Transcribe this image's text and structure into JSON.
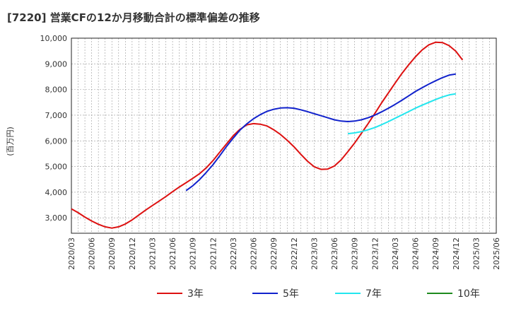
{
  "chart_data": {
    "type": "line",
    "title": "[7220]  営業CFの12か月移動合計の標準偏差の推移",
    "ylabel": "(百万円)",
    "xlabel": "",
    "ylim": [
      2400,
      10000
    ],
    "yticks": [
      3000,
      4000,
      5000,
      6000,
      7000,
      8000,
      9000,
      10000
    ],
    "ytick_labels": [
      "3,000",
      "4,000",
      "5,000",
      "6,000",
      "7,000",
      "8,000",
      "9,000",
      "10,000"
    ],
    "xlim": [
      "2020-03",
      "2025-06"
    ],
    "x_tick_labels": [
      "2020/03",
      "2020/06",
      "2020/09",
      "2020/12",
      "2021/03",
      "2021/06",
      "2021/09",
      "2021/12",
      "2022/03",
      "2022/06",
      "2022/09",
      "2022/12",
      "2023/03",
      "2023/06",
      "2023/09",
      "2023/12",
      "2024/03",
      "2024/06",
      "2024/09",
      "2024/12",
      "2025/03",
      "2025/06"
    ],
    "grid": true,
    "legend_position": "bottom",
    "series": [
      {
        "name": "3年",
        "color": "#dd1111",
        "points": [
          [
            "2020-03",
            3350
          ],
          [
            "2020-04",
            3200
          ],
          [
            "2020-05",
            3030
          ],
          [
            "2020-06",
            2880
          ],
          [
            "2020-07",
            2750
          ],
          [
            "2020-08",
            2650
          ],
          [
            "2020-09",
            2600
          ],
          [
            "2020-10",
            2650
          ],
          [
            "2020-11",
            2760
          ],
          [
            "2020-12",
            2920
          ],
          [
            "2021-01",
            3110
          ],
          [
            "2021-02",
            3300
          ],
          [
            "2021-03",
            3480
          ],
          [
            "2021-04",
            3650
          ],
          [
            "2021-05",
            3830
          ],
          [
            "2021-06",
            4020
          ],
          [
            "2021-07",
            4200
          ],
          [
            "2021-08",
            4370
          ],
          [
            "2021-09",
            4540
          ],
          [
            "2021-10",
            4720
          ],
          [
            "2021-11",
            4950
          ],
          [
            "2021-12",
            5230
          ],
          [
            "2022-01",
            5560
          ],
          [
            "2022-02",
            5880
          ],
          [
            "2022-03",
            6200
          ],
          [
            "2022-04",
            6450
          ],
          [
            "2022-05",
            6620
          ],
          [
            "2022-06",
            6670
          ],
          [
            "2022-07",
            6650
          ],
          [
            "2022-08",
            6580
          ],
          [
            "2022-09",
            6430
          ],
          [
            "2022-10",
            6250
          ],
          [
            "2022-11",
            6020
          ],
          [
            "2022-12",
            5770
          ],
          [
            "2023-01",
            5480
          ],
          [
            "2023-02",
            5210
          ],
          [
            "2023-03",
            4990
          ],
          [
            "2023-04",
            4890
          ],
          [
            "2023-05",
            4900
          ],
          [
            "2023-06",
            5020
          ],
          [
            "2023-07",
            5260
          ],
          [
            "2023-08",
            5580
          ],
          [
            "2023-09",
            5920
          ],
          [
            "2023-10",
            6290
          ],
          [
            "2023-11",
            6670
          ],
          [
            "2023-12",
            7070
          ],
          [
            "2024-01",
            7480
          ],
          [
            "2024-02",
            7870
          ],
          [
            "2024-03",
            8250
          ],
          [
            "2024-04",
            8620
          ],
          [
            "2024-05",
            8960
          ],
          [
            "2024-06",
            9270
          ],
          [
            "2024-07",
            9540
          ],
          [
            "2024-08",
            9740
          ],
          [
            "2024-09",
            9840
          ],
          [
            "2024-10",
            9830
          ],
          [
            "2024-11",
            9710
          ],
          [
            "2024-12",
            9490
          ],
          [
            "2025-01",
            9150
          ]
        ]
      },
      {
        "name": "5年",
        "color": "#1122cc",
        "points": [
          [
            "2021-08",
            4060
          ],
          [
            "2021-09",
            4250
          ],
          [
            "2021-10",
            4490
          ],
          [
            "2021-11",
            4770
          ],
          [
            "2021-12",
            5070
          ],
          [
            "2022-01",
            5420
          ],
          [
            "2022-02",
            5780
          ],
          [
            "2022-03",
            6110
          ],
          [
            "2022-04",
            6420
          ],
          [
            "2022-05",
            6660
          ],
          [
            "2022-06",
            6860
          ],
          [
            "2022-07",
            7020
          ],
          [
            "2022-08",
            7150
          ],
          [
            "2022-09",
            7230
          ],
          [
            "2022-10",
            7280
          ],
          [
            "2022-11",
            7290
          ],
          [
            "2022-12",
            7270
          ],
          [
            "2023-01",
            7210
          ],
          [
            "2023-02",
            7140
          ],
          [
            "2023-03",
            7060
          ],
          [
            "2023-04",
            6980
          ],
          [
            "2023-05",
            6900
          ],
          [
            "2023-06",
            6820
          ],
          [
            "2023-07",
            6770
          ],
          [
            "2023-08",
            6750
          ],
          [
            "2023-09",
            6770
          ],
          [
            "2023-10",
            6820
          ],
          [
            "2023-11",
            6900
          ],
          [
            "2023-12",
            7000
          ],
          [
            "2024-01",
            7130
          ],
          [
            "2024-02",
            7270
          ],
          [
            "2024-03",
            7420
          ],
          [
            "2024-04",
            7580
          ],
          [
            "2024-05",
            7750
          ],
          [
            "2024-06",
            7920
          ],
          [
            "2024-07",
            8070
          ],
          [
            "2024-08",
            8210
          ],
          [
            "2024-09",
            8340
          ],
          [
            "2024-10",
            8460
          ],
          [
            "2024-11",
            8560
          ],
          [
            "2024-12",
            8600
          ]
        ]
      },
      {
        "name": "7年",
        "color": "#22e6ee",
        "points": [
          [
            "2023-08",
            6280
          ],
          [
            "2023-09",
            6310
          ],
          [
            "2023-10",
            6360
          ],
          [
            "2023-11",
            6430
          ],
          [
            "2023-12",
            6520
          ],
          [
            "2024-01",
            6630
          ],
          [
            "2024-02",
            6750
          ],
          [
            "2024-03",
            6880
          ],
          [
            "2024-04",
            7010
          ],
          [
            "2024-05",
            7140
          ],
          [
            "2024-06",
            7270
          ],
          [
            "2024-07",
            7390
          ],
          [
            "2024-08",
            7500
          ],
          [
            "2024-09",
            7610
          ],
          [
            "2024-10",
            7710
          ],
          [
            "2024-11",
            7790
          ],
          [
            "2024-12",
            7830
          ]
        ]
      },
      {
        "name": "10年",
        "color": "#1f8a1f",
        "points": []
      }
    ]
  }
}
